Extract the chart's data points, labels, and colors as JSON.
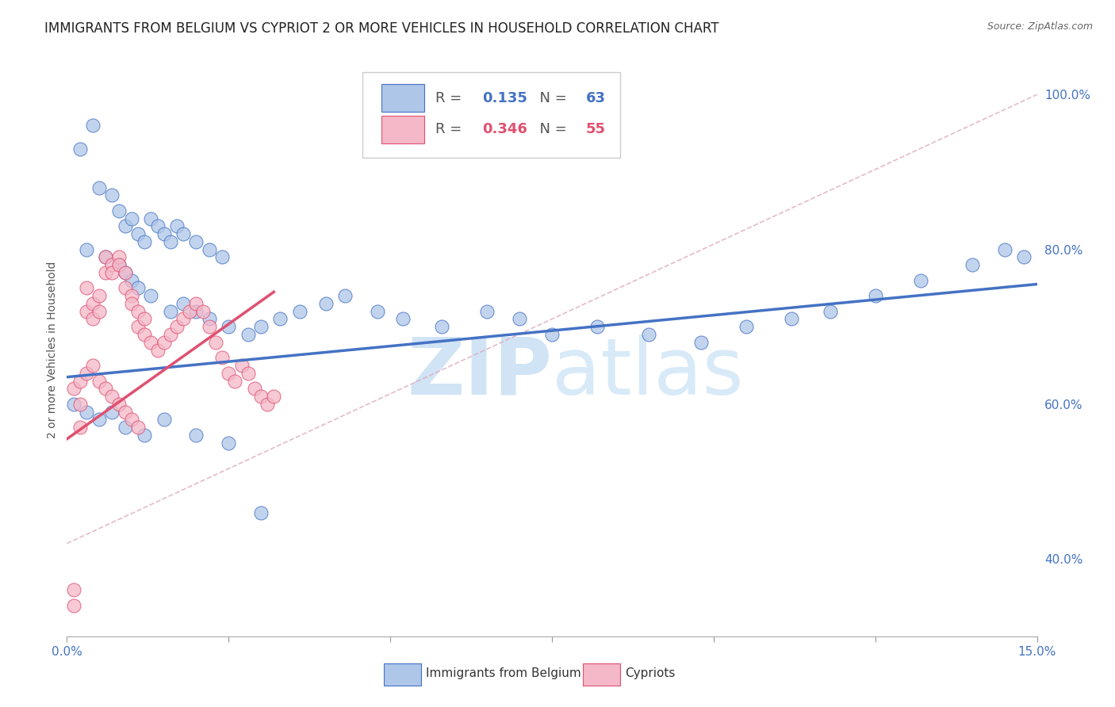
{
  "title": "IMMIGRANTS FROM BELGIUM VS CYPRIOT 2 OR MORE VEHICLES IN HOUSEHOLD CORRELATION CHART",
  "source_text": "Source: ZipAtlas.com",
  "ylabel": "2 or more Vehicles in Household",
  "xlim": [
    0.0,
    0.15
  ],
  "ylim": [
    0.3,
    1.04
  ],
  "xtick_positions": [
    0.0,
    0.025,
    0.05,
    0.075,
    0.1,
    0.125,
    0.15
  ],
  "xticklabels": [
    "0.0%",
    "",
    "",
    "",
    "",
    "",
    "15.0%"
  ],
  "yticks_right": [
    0.4,
    0.6,
    0.8,
    1.0
  ],
  "yticklabels_right": [
    "40.0%",
    "60.0%",
    "80.0%",
    "100.0%"
  ],
  "grid_color": "#d0d0d0",
  "background_color": "#ffffff",
  "legend_label1": "Immigrants from Belgium",
  "legend_label2": "Cypriots",
  "R1": 0.135,
  "N1": 63,
  "R2": 0.346,
  "N2": 55,
  "color_blue": "#AEC6E8",
  "color_pink": "#F4B8C8",
  "line_color_blue": "#4472C4",
  "line_color_pink": "#E05070",
  "tick_color": "#4472C4",
  "title_fontsize": 12,
  "axis_label_fontsize": 10,
  "tick_fontsize": 11,
  "watermark_color": "#D0E4F5",
  "blue_trend_x": [
    0.0,
    0.15
  ],
  "blue_trend_y": [
    0.635,
    0.755
  ],
  "pink_trend_x": [
    0.0,
    0.032
  ],
  "pink_trend_y": [
    0.555,
    0.745
  ],
  "ref_line_x": [
    0.0,
    0.15
  ],
  "ref_line_y": [
    0.42,
    1.0
  ],
  "blue_points_x": [
    0.002,
    0.004,
    0.005,
    0.007,
    0.008,
    0.009,
    0.01,
    0.011,
    0.012,
    0.013,
    0.014,
    0.015,
    0.016,
    0.017,
    0.018,
    0.02,
    0.022,
    0.024,
    0.003,
    0.006,
    0.008,
    0.009,
    0.01,
    0.011,
    0.013,
    0.016,
    0.018,
    0.02,
    0.022,
    0.025,
    0.028,
    0.03,
    0.033,
    0.036,
    0.04,
    0.043,
    0.048,
    0.052,
    0.058,
    0.065,
    0.07,
    0.075,
    0.082,
    0.09,
    0.098,
    0.105,
    0.112,
    0.118,
    0.125,
    0.132,
    0.14,
    0.145,
    0.148,
    0.001,
    0.003,
    0.005,
    0.007,
    0.009,
    0.012,
    0.015,
    0.02,
    0.025,
    0.03
  ],
  "blue_points_y": [
    0.93,
    0.96,
    0.88,
    0.87,
    0.85,
    0.83,
    0.84,
    0.82,
    0.81,
    0.84,
    0.83,
    0.82,
    0.81,
    0.83,
    0.82,
    0.81,
    0.8,
    0.79,
    0.8,
    0.79,
    0.78,
    0.77,
    0.76,
    0.75,
    0.74,
    0.72,
    0.73,
    0.72,
    0.71,
    0.7,
    0.69,
    0.7,
    0.71,
    0.72,
    0.73,
    0.74,
    0.72,
    0.71,
    0.7,
    0.72,
    0.71,
    0.69,
    0.7,
    0.69,
    0.68,
    0.7,
    0.71,
    0.72,
    0.74,
    0.76,
    0.78,
    0.8,
    0.79,
    0.6,
    0.59,
    0.58,
    0.59,
    0.57,
    0.56,
    0.58,
    0.56,
    0.55,
    0.46
  ],
  "pink_points_x": [
    0.001,
    0.001,
    0.002,
    0.002,
    0.003,
    0.003,
    0.004,
    0.004,
    0.005,
    0.005,
    0.006,
    0.006,
    0.007,
    0.007,
    0.008,
    0.008,
    0.009,
    0.009,
    0.01,
    0.01,
    0.011,
    0.011,
    0.012,
    0.012,
    0.013,
    0.014,
    0.015,
    0.016,
    0.017,
    0.018,
    0.019,
    0.02,
    0.021,
    0.022,
    0.023,
    0.024,
    0.025,
    0.026,
    0.027,
    0.028,
    0.029,
    0.03,
    0.031,
    0.032,
    0.001,
    0.002,
    0.003,
    0.004,
    0.005,
    0.006,
    0.007,
    0.008,
    0.009,
    0.01,
    0.011
  ],
  "pink_points_y": [
    0.36,
    0.34,
    0.6,
    0.57,
    0.72,
    0.75,
    0.71,
    0.73,
    0.72,
    0.74,
    0.79,
    0.77,
    0.78,
    0.77,
    0.79,
    0.78,
    0.77,
    0.75,
    0.74,
    0.73,
    0.72,
    0.7,
    0.71,
    0.69,
    0.68,
    0.67,
    0.68,
    0.69,
    0.7,
    0.71,
    0.72,
    0.73,
    0.72,
    0.7,
    0.68,
    0.66,
    0.64,
    0.63,
    0.65,
    0.64,
    0.62,
    0.61,
    0.6,
    0.61,
    0.62,
    0.63,
    0.64,
    0.65,
    0.63,
    0.62,
    0.61,
    0.6,
    0.59,
    0.58,
    0.57
  ]
}
